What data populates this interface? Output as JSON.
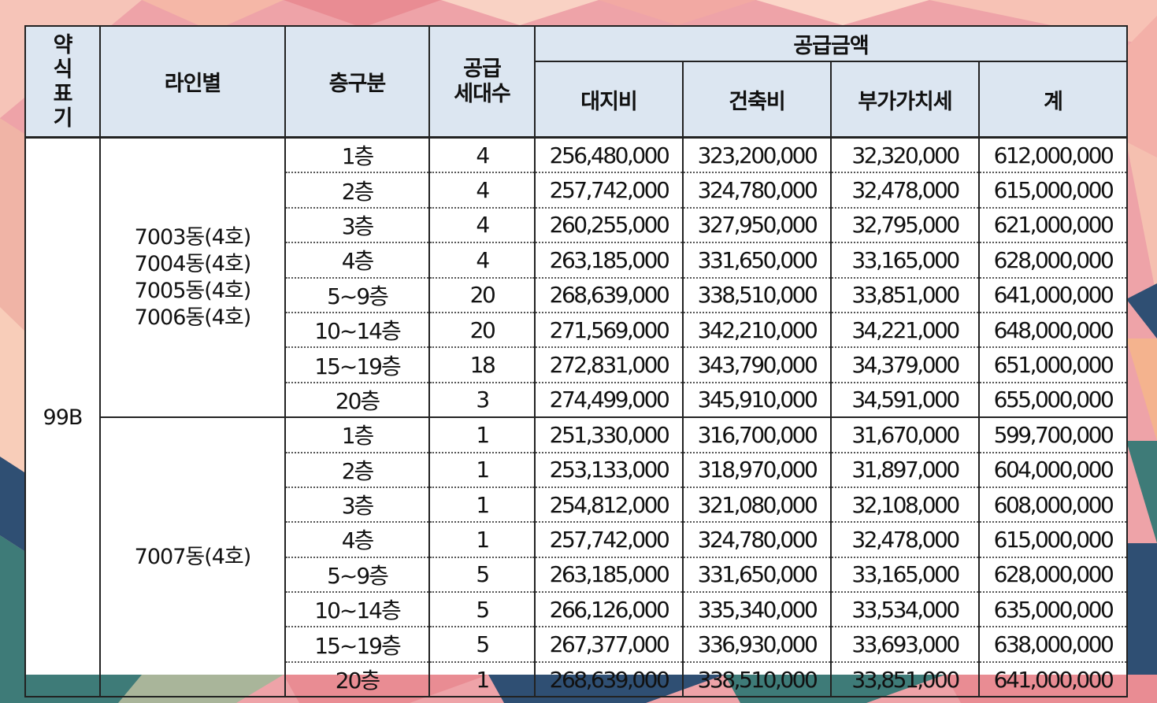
{
  "header": {
    "type_label": "약식표기",
    "line_label": "라인별",
    "floor_label": "층구분",
    "units_label": "공급\n세대수",
    "amount_group_label": "공급금액",
    "land_label": "대지비",
    "building_label": "건축비",
    "vat_label": "부가가치세",
    "total_label": "계"
  },
  "type_value": "99B",
  "groups": [
    {
      "lines": "7003동(4호)\n7004동(4호)\n7005동(4호)\n7006동(4호)",
      "rows": [
        {
          "floor": "1층",
          "units": "4",
          "land": "256,480,000",
          "building": "323,200,000",
          "vat": "32,320,000",
          "total": "612,000,000"
        },
        {
          "floor": "2층",
          "units": "4",
          "land": "257,742,000",
          "building": "324,780,000",
          "vat": "32,478,000",
          "total": "615,000,000"
        },
        {
          "floor": "3층",
          "units": "4",
          "land": "260,255,000",
          "building": "327,950,000",
          "vat": "32,795,000",
          "total": "621,000,000"
        },
        {
          "floor": "4층",
          "units": "4",
          "land": "263,185,000",
          "building": "331,650,000",
          "vat": "33,165,000",
          "total": "628,000,000"
        },
        {
          "floor": "5~9층",
          "units": "20",
          "land": "268,639,000",
          "building": "338,510,000",
          "vat": "33,851,000",
          "total": "641,000,000"
        },
        {
          "floor": "10~14층",
          "units": "20",
          "land": "271,569,000",
          "building": "342,210,000",
          "vat": "34,221,000",
          "total": "648,000,000"
        },
        {
          "floor": "15~19층",
          "units": "18",
          "land": "272,831,000",
          "building": "343,790,000",
          "vat": "34,379,000",
          "total": "651,000,000"
        },
        {
          "floor": "20층",
          "units": "3",
          "land": "274,499,000",
          "building": "345,910,000",
          "vat": "34,591,000",
          "total": "655,000,000"
        }
      ]
    },
    {
      "lines": "7007동(4호)",
      "rows": [
        {
          "floor": "1층",
          "units": "1",
          "land": "251,330,000",
          "building": "316,700,000",
          "vat": "31,670,000",
          "total": "599,700,000"
        },
        {
          "floor": "2층",
          "units": "1",
          "land": "253,133,000",
          "building": "318,970,000",
          "vat": "31,897,000",
          "total": "604,000,000"
        },
        {
          "floor": "3층",
          "units": "1",
          "land": "254,812,000",
          "building": "321,080,000",
          "vat": "32,108,000",
          "total": "608,000,000"
        },
        {
          "floor": "4층",
          "units": "1",
          "land": "257,742,000",
          "building": "324,780,000",
          "vat": "32,478,000",
          "total": "615,000,000"
        },
        {
          "floor": "5~9층",
          "units": "5",
          "land": "263,185,000",
          "building": "331,650,000",
          "vat": "33,165,000",
          "total": "628,000,000"
        },
        {
          "floor": "10~14층",
          "units": "5",
          "land": "266,126,000",
          "building": "335,340,000",
          "vat": "33,534,000",
          "total": "635,000,000"
        },
        {
          "floor": "15~19층",
          "units": "5",
          "land": "267,377,000",
          "building": "336,930,000",
          "vat": "33,693,000",
          "total": "638,000,000"
        },
        {
          "floor": "20층",
          "units": "1",
          "land": "268,639,000",
          "building": "338,510,000",
          "vat": "33,851,000",
          "total": "641,000,000"
        }
      ]
    }
  ],
  "colors": {
    "header_bg": "#dce6f1",
    "border": "#222222",
    "bg_pink": "#eea3a8",
    "bg_teal": "#3e7b78",
    "bg_navy": "#2f4f73",
    "bg_peach": "#f4b38e"
  }
}
